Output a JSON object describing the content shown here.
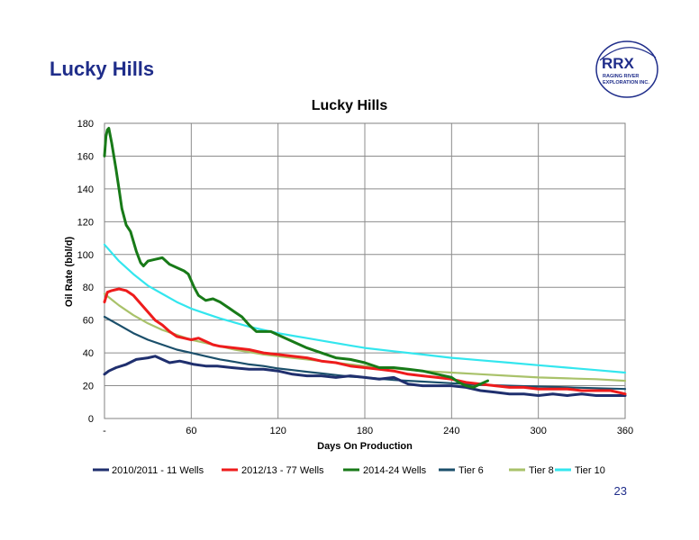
{
  "slide": {
    "title": "Lucky Hills",
    "page_number": "23"
  },
  "logo": {
    "brand": "RRX",
    "line1": "RAGING RIVER",
    "line2": "EXPLORATION INC.",
    "color": "#1f2d8a"
  },
  "chart_data": {
    "type": "line",
    "title": "Lucky Hills",
    "xlabel": "Days On Production",
    "ylabel": "Oil Rate (bbl/d)",
    "xlim": [
      0,
      360
    ],
    "ylim": [
      0,
      180
    ],
    "x_ticks": [
      {
        "value": 0,
        "label": "-"
      },
      {
        "value": 60,
        "label": "60"
      },
      {
        "value": 120,
        "label": "120"
      },
      {
        "value": 180,
        "label": "180"
      },
      {
        "value": 240,
        "label": "240"
      },
      {
        "value": 300,
        "label": "300"
      },
      {
        "value": 360,
        "label": "360"
      }
    ],
    "y_ticks": [
      0,
      20,
      40,
      60,
      80,
      100,
      120,
      140,
      160,
      180
    ],
    "grid": true,
    "legend_position": "bottom",
    "series": [
      {
        "name": "2010/2011 - 11 Wells",
        "color": "#1f2f6e",
        "x": [
          0,
          3,
          8,
          15,
          22,
          30,
          35,
          40,
          45,
          52,
          57,
          62,
          70,
          78,
          88,
          100,
          110,
          120,
          130,
          140,
          150,
          160,
          170,
          180,
          190,
          200,
          210,
          220,
          230,
          240,
          250,
          260,
          270,
          280,
          290,
          300,
          310,
          320,
          330,
          340,
          350,
          360
        ],
        "values": [
          27,
          29,
          31,
          33,
          36,
          37,
          38,
          36,
          34,
          35,
          34,
          33,
          32,
          32,
          31,
          30,
          30,
          29,
          27,
          26,
          26,
          25,
          26,
          25,
          24,
          25,
          21,
          20,
          20,
          20,
          19,
          17,
          16,
          15,
          15,
          14,
          15,
          14,
          15,
          14,
          14,
          14
        ]
      },
      {
        "name": "2012/13 - 77 Wells",
        "color": "#ee1c1c",
        "x": [
          0,
          2,
          5,
          10,
          15,
          20,
          25,
          30,
          35,
          40,
          45,
          50,
          55,
          60,
          65,
          70,
          75,
          80,
          90,
          100,
          110,
          120,
          130,
          140,
          150,
          160,
          170,
          180,
          190,
          200,
          210,
          220,
          230,
          240,
          250,
          260,
          270,
          280,
          290,
          300,
          310,
          320,
          330,
          340,
          350,
          360
        ],
        "values": [
          71,
          77,
          78,
          79,
          78,
          75,
          70,
          65,
          60,
          57,
          53,
          50,
          49,
          48,
          49,
          47,
          45,
          44,
          43,
          42,
          40,
          39,
          38,
          37,
          35,
          34,
          32,
          31,
          30,
          29,
          27,
          26,
          25,
          24,
          22,
          21,
          20,
          19,
          19,
          18,
          18,
          18,
          17,
          17,
          17,
          15
        ]
      },
      {
        "name": "2014-24 Wells",
        "color": "#187a18",
        "x": [
          0,
          1,
          2,
          3,
          5,
          8,
          10,
          12,
          15,
          18,
          20,
          22,
          25,
          27,
          30,
          35,
          40,
          45,
          50,
          55,
          58,
          62,
          65,
          70,
          75,
          80,
          85,
          90,
          95,
          100,
          105,
          110,
          115,
          120,
          130,
          140,
          150,
          160,
          170,
          180,
          190,
          200,
          210,
          220,
          230,
          240,
          245,
          250,
          255,
          260,
          265
        ],
        "values": [
          160,
          172,
          176,
          177,
          168,
          152,
          140,
          128,
          118,
          114,
          108,
          102,
          95,
          93,
          96,
          97,
          98,
          94,
          92,
          90,
          88,
          80,
          75,
          72,
          73,
          71,
          68,
          65,
          62,
          57,
          53,
          53,
          53,
          51,
          47,
          43,
          40,
          37,
          36,
          34,
          31,
          31,
          30,
          29,
          27,
          25,
          22,
          20,
          19,
          21,
          23
        ]
      },
      {
        "name": "Tier 6",
        "color": "#1b4f6b",
        "x": [
          0,
          10,
          20,
          30,
          40,
          50,
          60,
          70,
          80,
          90,
          100,
          110,
          120,
          130,
          140,
          150,
          160,
          170,
          180,
          200,
          220,
          240,
          260,
          280,
          300,
          320,
          340,
          360
        ],
        "values": [
          62,
          57,
          52,
          48,
          45,
          42,
          40,
          38,
          36,
          34.5,
          33,
          32,
          30.5,
          29.5,
          28.5,
          27.5,
          26.5,
          25.5,
          25,
          23.5,
          22.5,
          21.5,
          20.5,
          20,
          19.5,
          19,
          18.5,
          18
        ]
      },
      {
        "name": "Tier 8",
        "color": "#a9c26a",
        "x": [
          0,
          10,
          20,
          30,
          40,
          50,
          60,
          70,
          80,
          90,
          100,
          110,
          120,
          130,
          140,
          150,
          160,
          170,
          180,
          200,
          220,
          240,
          260,
          280,
          300,
          320,
          340,
          360
        ],
        "values": [
          76,
          69,
          63,
          58,
          54,
          51,
          48,
          46,
          44,
          42,
          40.5,
          39,
          38,
          37,
          36,
          35,
          34,
          33,
          32,
          30.5,
          29,
          28,
          27,
          26,
          25,
          24.5,
          24,
          23
        ]
      },
      {
        "name": "Tier 10",
        "color": "#33e6ee",
        "x": [
          0,
          10,
          20,
          30,
          40,
          50,
          60,
          70,
          80,
          90,
          100,
          110,
          120,
          130,
          140,
          150,
          160,
          170,
          180,
          200,
          220,
          240,
          260,
          280,
          300,
          320,
          340,
          360
        ],
        "values": [
          106,
          96,
          88,
          81,
          76,
          71,
          67,
          64,
          61,
          58.5,
          56,
          54,
          52,
          50.5,
          49,
          47.5,
          46,
          44.5,
          43,
          41,
          39,
          37,
          35.5,
          34,
          32.5,
          31,
          29.5,
          28
        ]
      }
    ]
  }
}
